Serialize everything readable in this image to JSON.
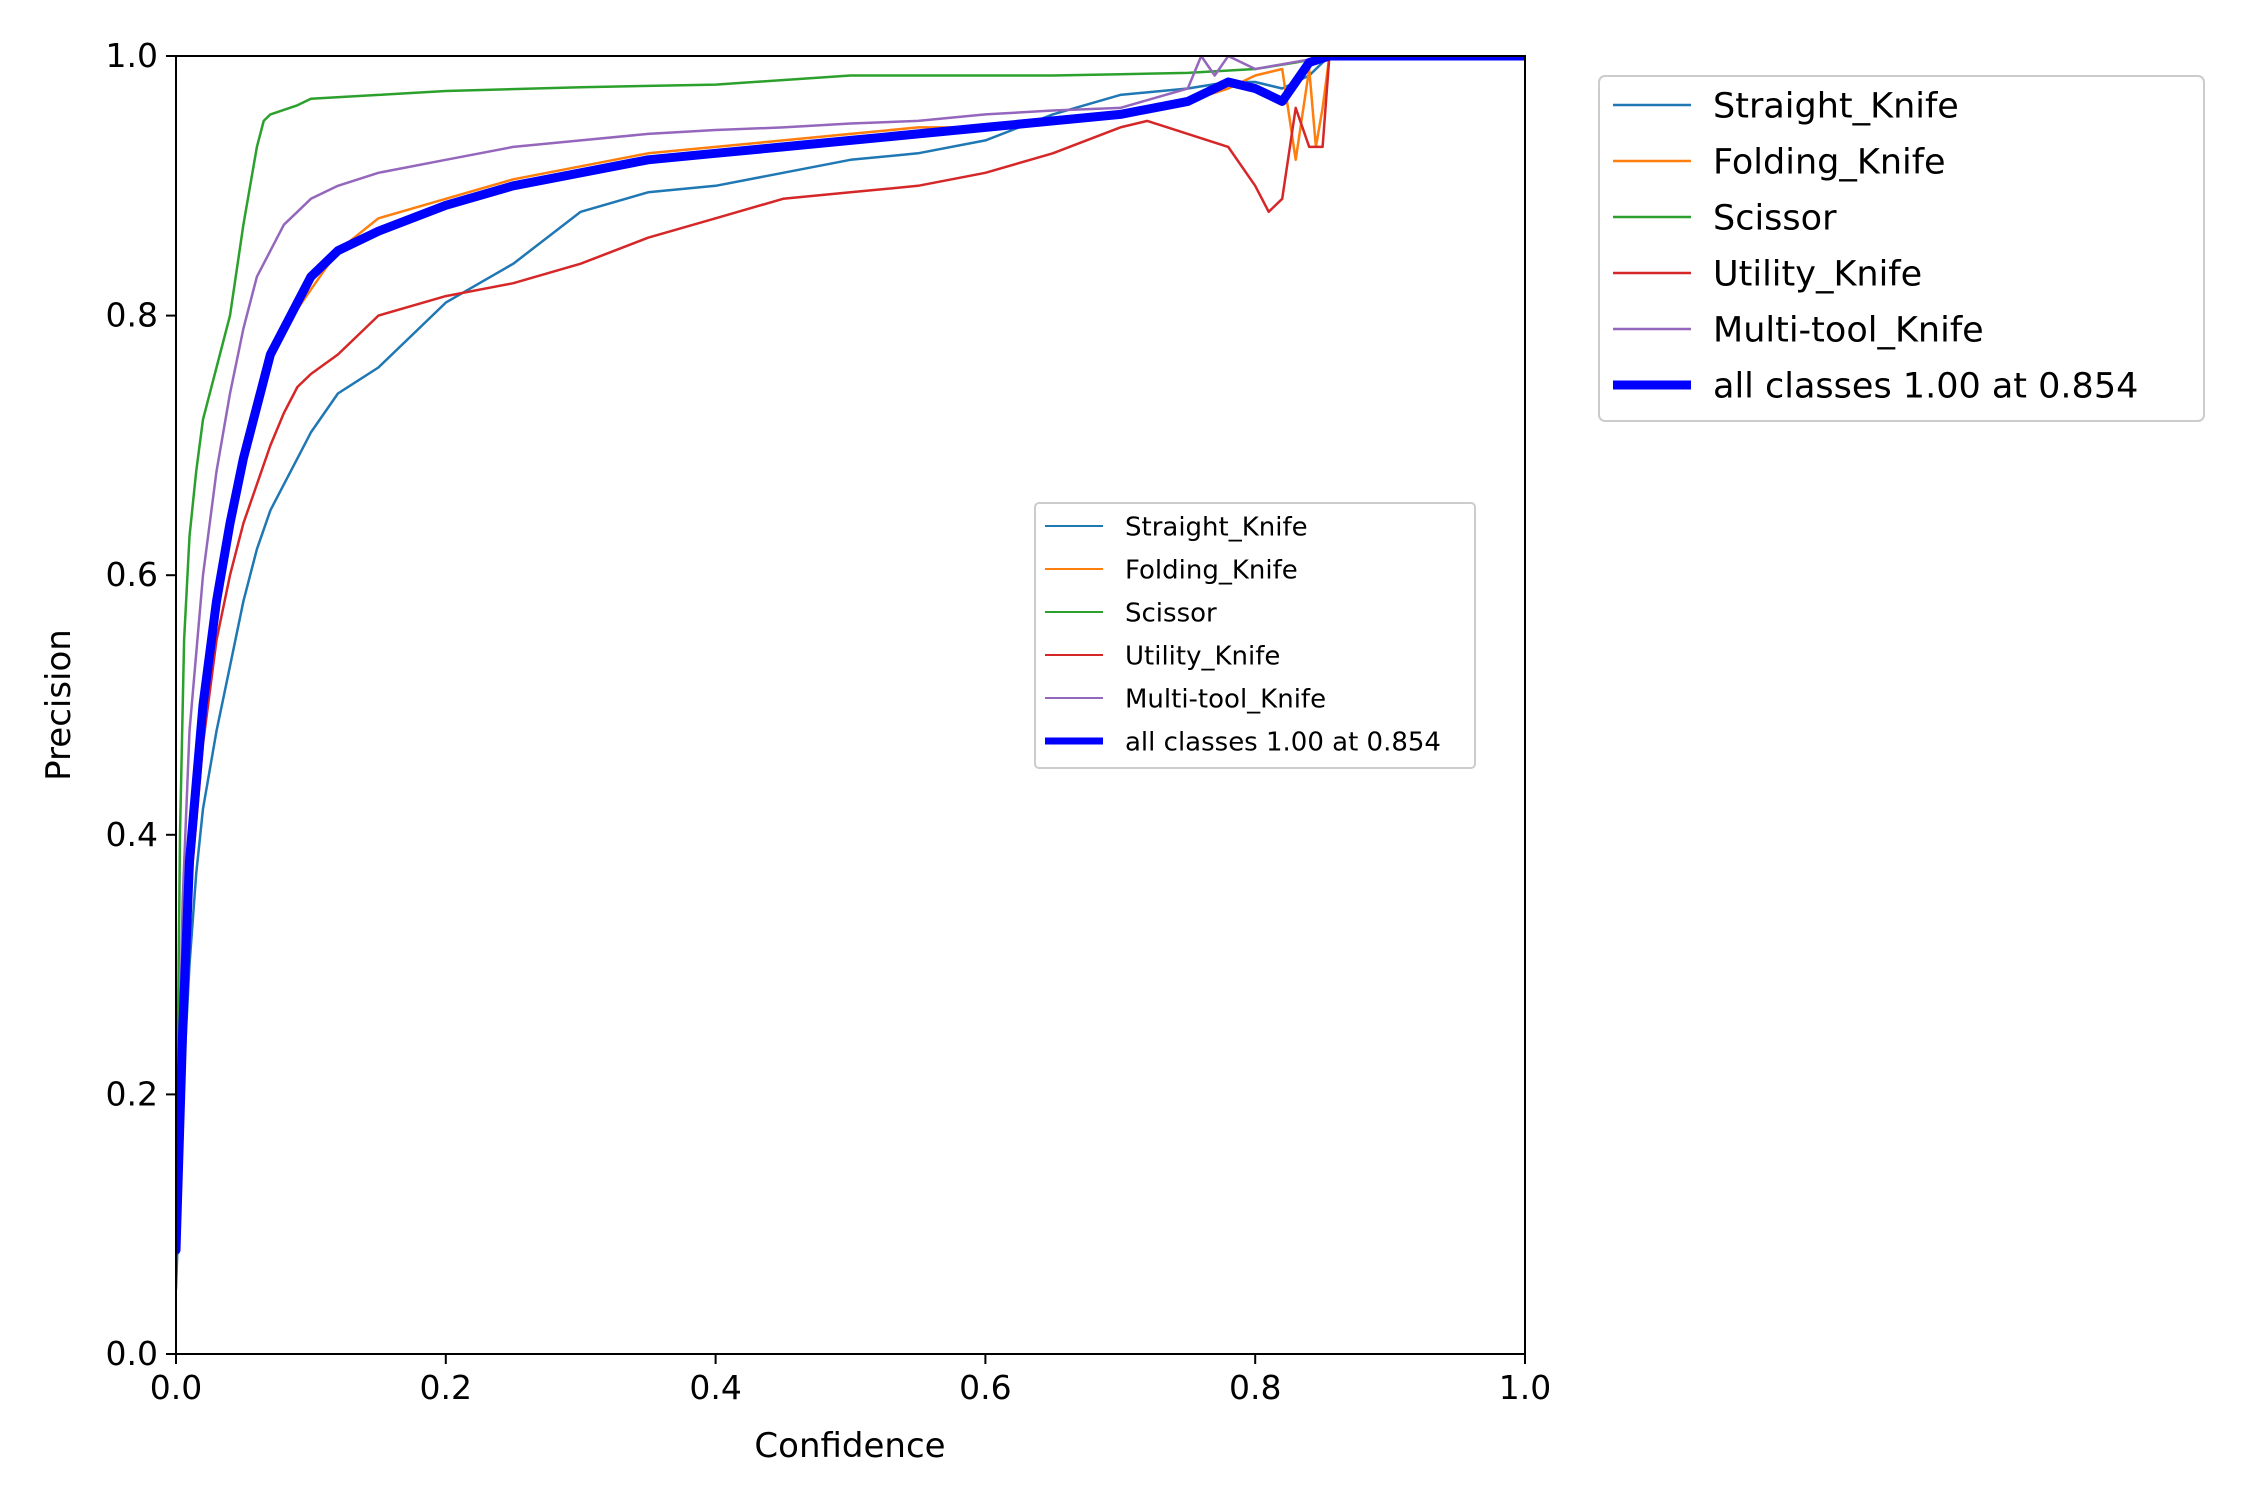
{
  "chart_data": {
    "type": "line",
    "title": "",
    "xlabel": "Confidence",
    "ylabel": "Precision",
    "xlim": [
      0,
      1
    ],
    "ylim": [
      0,
      1
    ],
    "x_ticks": [
      "0.0",
      "0.2",
      "0.4",
      "0.6",
      "0.8",
      "1.0"
    ],
    "y_ticks": [
      "0.0",
      "0.2",
      "0.4",
      "0.6",
      "0.8",
      "1.0"
    ],
    "grid": false,
    "legend_placement": "outside-top-right",
    "inset_legend_placement": "center-right",
    "series": [
      {
        "name": "Straight_Knife",
        "color": "#1f77b4",
        "points": [
          [
            0,
            0.05
          ],
          [
            0.005,
            0.2
          ],
          [
            0.01,
            0.3
          ],
          [
            0.015,
            0.37
          ],
          [
            0.02,
            0.42
          ],
          [
            0.03,
            0.48
          ],
          [
            0.04,
            0.53
          ],
          [
            0.05,
            0.58
          ],
          [
            0.06,
            0.62
          ],
          [
            0.07,
            0.65
          ],
          [
            0.08,
            0.67
          ],
          [
            0.09,
            0.69
          ],
          [
            0.1,
            0.71
          ],
          [
            0.12,
            0.74
          ],
          [
            0.15,
            0.76
          ],
          [
            0.18,
            0.79
          ],
          [
            0.2,
            0.81
          ],
          [
            0.25,
            0.84
          ],
          [
            0.3,
            0.88
          ],
          [
            0.35,
            0.895
          ],
          [
            0.4,
            0.9
          ],
          [
            0.45,
            0.91
          ],
          [
            0.5,
            0.92
          ],
          [
            0.55,
            0.925
          ],
          [
            0.6,
            0.935
          ],
          [
            0.65,
            0.955
          ],
          [
            0.7,
            0.97
          ],
          [
            0.75,
            0.975
          ],
          [
            0.78,
            0.98
          ],
          [
            0.8,
            0.98
          ],
          [
            0.82,
            0.975
          ],
          [
            0.84,
            0.985
          ],
          [
            0.855,
            1.0
          ],
          [
            1,
            1.0
          ]
        ]
      },
      {
        "name": "Folding_Knife",
        "color": "#ff7f0e",
        "points": [
          [
            0,
            0.08
          ],
          [
            0.005,
            0.25
          ],
          [
            0.01,
            0.38
          ],
          [
            0.02,
            0.5
          ],
          [
            0.03,
            0.58
          ],
          [
            0.04,
            0.64
          ],
          [
            0.05,
            0.7
          ],
          [
            0.06,
            0.74
          ],
          [
            0.08,
            0.79
          ],
          [
            0.1,
            0.82
          ],
          [
            0.12,
            0.85
          ],
          [
            0.15,
            0.875
          ],
          [
            0.2,
            0.89
          ],
          [
            0.25,
            0.905
          ],
          [
            0.3,
            0.915
          ],
          [
            0.35,
            0.925
          ],
          [
            0.4,
            0.93
          ],
          [
            0.45,
            0.935
          ],
          [
            0.5,
            0.94
          ],
          [
            0.55,
            0.945
          ],
          [
            0.6,
            0.945
          ],
          [
            0.65,
            0.948
          ],
          [
            0.7,
            0.955
          ],
          [
            0.75,
            0.965
          ],
          [
            0.78,
            0.975
          ],
          [
            0.8,
            0.985
          ],
          [
            0.82,
            0.99
          ],
          [
            0.83,
            0.92
          ],
          [
            0.84,
            0.99
          ],
          [
            0.845,
            0.93
          ],
          [
            0.85,
            0.96
          ],
          [
            0.855,
            1.0
          ],
          [
            1,
            1.0
          ]
        ]
      },
      {
        "name": "Scissor",
        "color": "#2ca02c",
        "points": [
          [
            0,
            0.1
          ],
          [
            0.003,
            0.4
          ],
          [
            0.006,
            0.55
          ],
          [
            0.01,
            0.63
          ],
          [
            0.015,
            0.68
          ],
          [
            0.02,
            0.72
          ],
          [
            0.03,
            0.76
          ],
          [
            0.04,
            0.8
          ],
          [
            0.05,
            0.87
          ],
          [
            0.06,
            0.93
          ],
          [
            0.065,
            0.95
          ],
          [
            0.07,
            0.955
          ],
          [
            0.09,
            0.962
          ],
          [
            0.1,
            0.967
          ],
          [
            0.15,
            0.97
          ],
          [
            0.2,
            0.973
          ],
          [
            0.3,
            0.976
          ],
          [
            0.4,
            0.978
          ],
          [
            0.5,
            0.985
          ],
          [
            0.6,
            0.985
          ],
          [
            0.65,
            0.985
          ],
          [
            0.7,
            0.986
          ],
          [
            0.75,
            0.987
          ],
          [
            0.8,
            0.99
          ],
          [
            0.83,
            0.995
          ],
          [
            0.855,
            1.0
          ],
          [
            1,
            1.0
          ]
        ]
      },
      {
        "name": "Utility_Knife",
        "color": "#d62728",
        "points": [
          [
            0,
            0.06
          ],
          [
            0.005,
            0.22
          ],
          [
            0.01,
            0.35
          ],
          [
            0.02,
            0.47
          ],
          [
            0.03,
            0.55
          ],
          [
            0.04,
            0.6
          ],
          [
            0.05,
            0.64
          ],
          [
            0.06,
            0.67
          ],
          [
            0.07,
            0.7
          ],
          [
            0.08,
            0.725
          ],
          [
            0.09,
            0.745
          ],
          [
            0.1,
            0.755
          ],
          [
            0.12,
            0.77
          ],
          [
            0.15,
            0.8
          ],
          [
            0.2,
            0.815
          ],
          [
            0.25,
            0.825
          ],
          [
            0.3,
            0.84
          ],
          [
            0.35,
            0.86
          ],
          [
            0.4,
            0.875
          ],
          [
            0.45,
            0.89
          ],
          [
            0.5,
            0.895
          ],
          [
            0.55,
            0.9
          ],
          [
            0.6,
            0.91
          ],
          [
            0.65,
            0.925
          ],
          [
            0.7,
            0.945
          ],
          [
            0.72,
            0.95
          ],
          [
            0.75,
            0.94
          ],
          [
            0.78,
            0.93
          ],
          [
            0.8,
            0.9
          ],
          [
            0.81,
            0.88
          ],
          [
            0.82,
            0.89
          ],
          [
            0.83,
            0.96
          ],
          [
            0.84,
            0.93
          ],
          [
            0.85,
            0.93
          ],
          [
            0.855,
            1.0
          ],
          [
            1,
            1.0
          ]
        ]
      },
      {
        "name": "Multi-tool_Knife",
        "color": "#9467bd",
        "points": [
          [
            0,
            0.1
          ],
          [
            0.005,
            0.35
          ],
          [
            0.01,
            0.48
          ],
          [
            0.02,
            0.6
          ],
          [
            0.03,
            0.68
          ],
          [
            0.04,
            0.74
          ],
          [
            0.05,
            0.79
          ],
          [
            0.06,
            0.83
          ],
          [
            0.07,
            0.85
          ],
          [
            0.08,
            0.87
          ],
          [
            0.09,
            0.88
          ],
          [
            0.1,
            0.89
          ],
          [
            0.12,
            0.9
          ],
          [
            0.15,
            0.91
          ],
          [
            0.2,
            0.92
          ],
          [
            0.25,
            0.93
          ],
          [
            0.3,
            0.935
          ],
          [
            0.35,
            0.94
          ],
          [
            0.4,
            0.943
          ],
          [
            0.45,
            0.945
          ],
          [
            0.5,
            0.948
          ],
          [
            0.55,
            0.95
          ],
          [
            0.6,
            0.955
          ],
          [
            0.65,
            0.958
          ],
          [
            0.7,
            0.96
          ],
          [
            0.75,
            0.975
          ],
          [
            0.76,
            1.0
          ],
          [
            0.77,
            0.985
          ],
          [
            0.78,
            1.0
          ],
          [
            0.8,
            0.99
          ],
          [
            0.855,
            1.0
          ],
          [
            1,
            1.0
          ]
        ]
      },
      {
        "name": "all classes 1.00 at 0.854",
        "color": "#0000ff",
        "thick": true,
        "points": [
          [
            0,
            0.08
          ],
          [
            0.005,
            0.25
          ],
          [
            0.01,
            0.38
          ],
          [
            0.02,
            0.5
          ],
          [
            0.03,
            0.58
          ],
          [
            0.04,
            0.64
          ],
          [
            0.05,
            0.69
          ],
          [
            0.06,
            0.73
          ],
          [
            0.07,
            0.77
          ],
          [
            0.08,
            0.79
          ],
          [
            0.09,
            0.81
          ],
          [
            0.1,
            0.83
          ],
          [
            0.12,
            0.85
          ],
          [
            0.15,
            0.865
          ],
          [
            0.2,
            0.885
          ],
          [
            0.25,
            0.9
          ],
          [
            0.3,
            0.91
          ],
          [
            0.35,
            0.92
          ],
          [
            0.4,
            0.925
          ],
          [
            0.45,
            0.93
          ],
          [
            0.5,
            0.935
          ],
          [
            0.55,
            0.94
          ],
          [
            0.6,
            0.945
          ],
          [
            0.65,
            0.95
          ],
          [
            0.7,
            0.955
          ],
          [
            0.75,
            0.965
          ],
          [
            0.78,
            0.98
          ],
          [
            0.8,
            0.975
          ],
          [
            0.82,
            0.965
          ],
          [
            0.83,
            0.98
          ],
          [
            0.84,
            0.995
          ],
          [
            0.855,
            1.0
          ],
          [
            1,
            1.0
          ]
        ]
      }
    ]
  }
}
